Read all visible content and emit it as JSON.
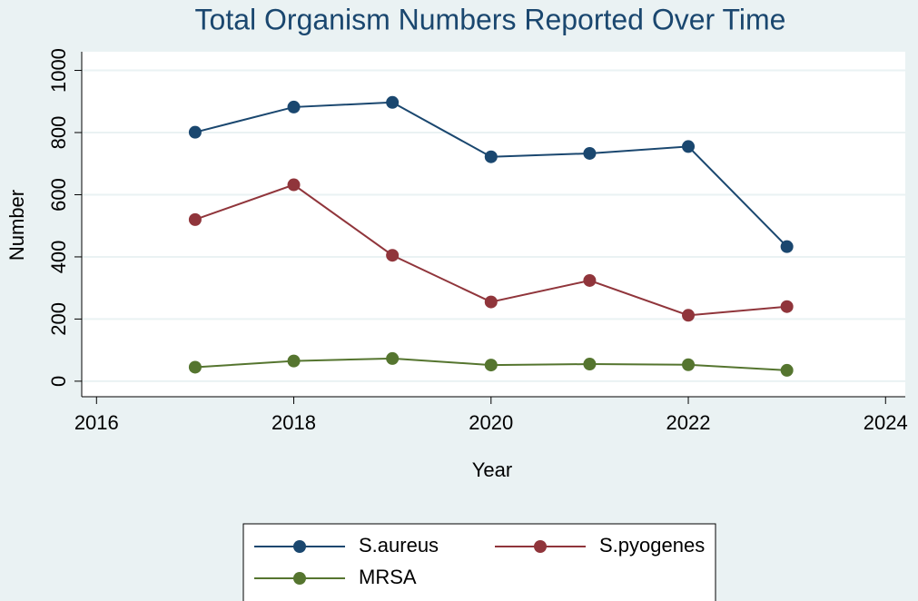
{
  "chart_data": {
    "type": "line",
    "title": "Total Organism Numbers Reported Over Time",
    "x_label": "Year",
    "y_label": "Number",
    "x": [
      2017,
      2018,
      2019,
      2020,
      2021,
      2022,
      2023
    ],
    "series": [
      {
        "name": "S.aureus",
        "color": "#1a476f",
        "values": [
          801,
          882,
          897,
          722,
          733,
          755,
          433
        ]
      },
      {
        "name": "S.pyogenes",
        "color": "#90353b",
        "values": [
          520,
          632,
          405,
          255,
          324,
          212,
          240
        ]
      },
      {
        "name": "MRSA",
        "color": "#55752f",
        "values": [
          45,
          65,
          73,
          52,
          55,
          53,
          35
        ]
      }
    ],
    "xlim": [
      2015.85,
      2024.2
    ],
    "xticks": [
      2016,
      2018,
      2020,
      2022,
      2024
    ],
    "ylim": [
      -50,
      1060
    ],
    "yticks": [
      0,
      200,
      400,
      600,
      800,
      1000
    ],
    "grid": true,
    "legend": "bottom"
  }
}
